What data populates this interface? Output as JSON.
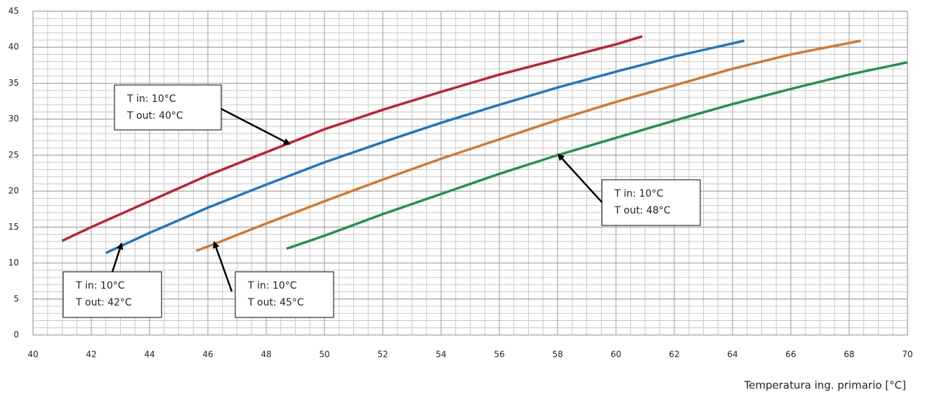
{
  "chart_data": {
    "type": "line",
    "x_label": "Temperatura ing. primario [°C]",
    "xlim": [
      40,
      70
    ],
    "xticks": [
      40,
      42,
      44,
      46,
      48,
      50,
      52,
      54,
      56,
      58,
      60,
      62,
      64,
      66,
      68,
      70
    ],
    "ylim": [
      0,
      45
    ],
    "yticks": [
      0,
      5,
      10,
      15,
      20,
      25,
      30,
      35,
      40,
      45
    ],
    "grid": true,
    "minor_grid": {
      "x": 0.5,
      "y": 1
    },
    "series": [
      {
        "color": "#c0202e",
        "x": [
          41,
          42,
          44,
          46,
          48,
          50,
          52,
          54,
          56,
          58,
          60,
          60.9
        ],
        "values": [
          13.1,
          15,
          18.6,
          22.2,
          25.4,
          28.6,
          31.3,
          33.8,
          36.2,
          38.3,
          40.4,
          41.5
        ]
      },
      {
        "color": "#1f77c0",
        "x": [
          42.5,
          44,
          46,
          48,
          50,
          52,
          54,
          56,
          58,
          60,
          62,
          64.4
        ],
        "values": [
          11.4,
          14.2,
          17.7,
          20.9,
          24,
          26.8,
          29.5,
          32,
          34.4,
          36.6,
          38.7,
          40.9
        ]
      },
      {
        "color": "#d4782e",
        "x": [
          45.6,
          46,
          48,
          50,
          52,
          54,
          56,
          58,
          60,
          62,
          64,
          66,
          68.4
        ],
        "values": [
          11.7,
          12.3,
          15.5,
          18.6,
          21.6,
          24.5,
          27.2,
          29.9,
          32.4,
          34.7,
          37,
          39,
          40.9
        ]
      },
      {
        "color": "#23924a",
        "x": [
          48.7,
          50,
          52,
          54,
          56,
          58,
          60,
          62,
          64,
          66,
          68,
          70
        ],
        "values": [
          12,
          13.8,
          16.8,
          19.6,
          22.4,
          25,
          27.4,
          29.8,
          32.1,
          34.2,
          36.2,
          37.9
        ]
      }
    ],
    "annotations": [
      {
        "lines": [
          "T in: 10°C",
          "T out: 40°C"
        ]
      },
      {
        "lines": [
          "T in: 10°C",
          "T out: 42°C"
        ]
      },
      {
        "lines": [
          "T in: 10°C",
          "T out: 45°C"
        ]
      },
      {
        "lines": [
          "T in: 10°C",
          "T out: 48°C"
        ]
      }
    ]
  }
}
